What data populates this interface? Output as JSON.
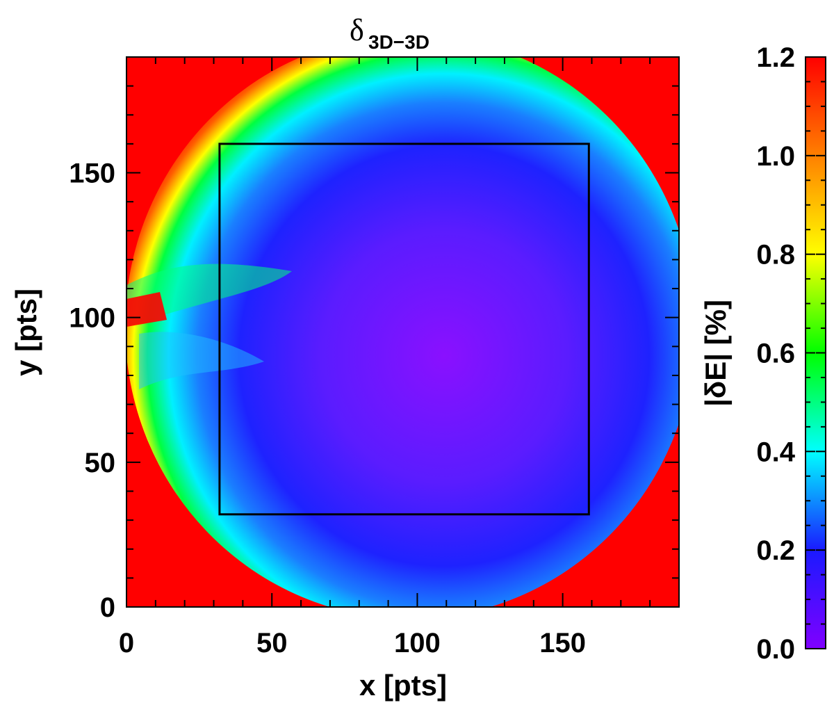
{
  "chart_data": {
    "type": "heatmap",
    "title": "δ",
    "title_subscript": "3D−3D",
    "xlabel": "x [pts]",
    "ylabel": "y [pts]",
    "colorbar_label": "|δE| [%]",
    "xlim": [
      0,
      190
    ],
    "ylim": [
      0,
      190
    ],
    "xticks": [
      0,
      50,
      100,
      150
    ],
    "yticks": [
      0,
      50,
      100,
      150
    ],
    "clim": [
      0.0,
      1.2
    ],
    "colorbar_ticks": [
      "0.0",
      "0.2",
      "0.4",
      "0.6",
      "0.8",
      "1.0",
      "1.2"
    ],
    "colorbar_tick_values": [
      0.0,
      0.2,
      0.4,
      0.6,
      0.8,
      1.0,
      1.2
    ],
    "colormap": [
      "#8000ff",
      "#1a1aff",
      "#00ffff",
      "#00ff00",
      "#ffff00",
      "#ff8000",
      "#ff0000"
    ],
    "rectangle": {
      "x0": 32,
      "x1": 159,
      "y0": 32,
      "y1": 160,
      "color": "#000000"
    },
    "grid": false,
    "description_values": {
      "interior_level": 0.05,
      "edge_level": 1.2
    }
  }
}
